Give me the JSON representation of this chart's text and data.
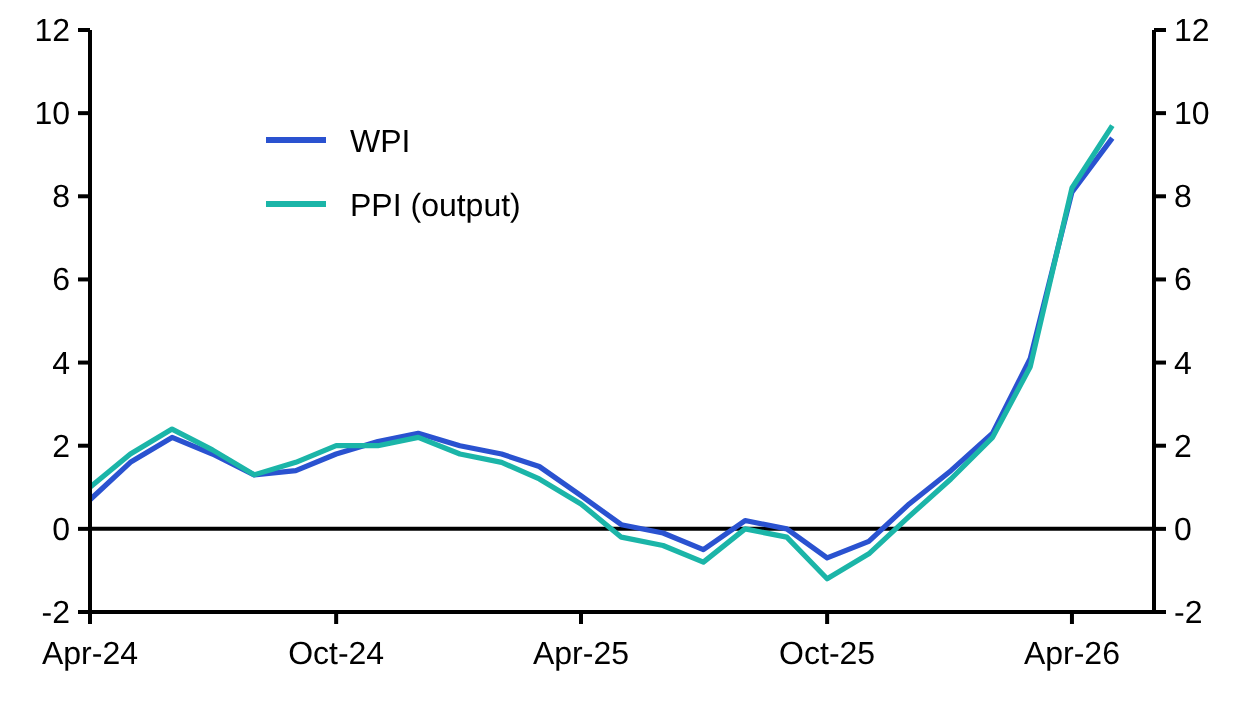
{
  "chart_data": {
    "type": "line",
    "x": [
      "2024-04",
      "2024-05",
      "2024-06",
      "2024-07",
      "2024-08",
      "2024-09",
      "2024-10",
      "2024-11",
      "2024-12",
      "2025-01",
      "2025-02",
      "2025-03",
      "2025-04",
      "2025-05",
      "2025-06",
      "2025-07",
      "2025-08",
      "2025-09",
      "2025-10",
      "2025-11",
      "2025-12",
      "2026-01",
      "2026-02",
      "2026-03",
      "2026-04",
      "2026-05"
    ],
    "series": [
      {
        "name": "WPI",
        "color": "#2a52d0",
        "values": [
          0.7,
          1.6,
          2.2,
          1.8,
          1.3,
          1.4,
          1.8,
          2.1,
          2.3,
          2.0,
          1.8,
          1.5,
          0.8,
          0.1,
          -0.1,
          -0.5,
          0.2,
          0.0,
          -0.7,
          -0.3,
          0.6,
          1.4,
          2.3,
          4.1,
          8.1,
          9.4
        ]
      },
      {
        "name": "PPI (output)",
        "color": "#1bb5a8",
        "values": [
          1.0,
          1.8,
          2.4,
          1.9,
          1.3,
          1.6,
          2.0,
          2.0,
          2.2,
          1.8,
          1.6,
          1.2,
          0.6,
          -0.2,
          -0.4,
          -0.8,
          0.0,
          -0.2,
          -1.2,
          -0.6,
          0.3,
          1.2,
          2.2,
          3.9,
          8.2,
          9.7
        ]
      }
    ],
    "xlim": [
      "2024-04",
      "2026-06"
    ],
    "xticks": [
      {
        "value": "2024-04",
        "label": "Apr-24"
      },
      {
        "value": "2024-10",
        "label": "Oct-24"
      },
      {
        "value": "2025-04",
        "label": "Apr-25"
      },
      {
        "value": "2025-10",
        "label": "Oct-25"
      },
      {
        "value": "2026-04",
        "label": "Apr-26"
      }
    ],
    "ylim": [
      -2,
      12
    ],
    "yticks": [
      -2,
      0,
      2,
      4,
      6,
      8,
      10,
      12
    ],
    "y2lim": [
      -2,
      12
    ],
    "y2ticks": [
      -2,
      0,
      2,
      4,
      6,
      8,
      10,
      12
    ],
    "ref_lines": [
      {
        "axis": "y",
        "value": 0,
        "color": "#000000"
      }
    ],
    "legend": "top left",
    "grid": false
  }
}
